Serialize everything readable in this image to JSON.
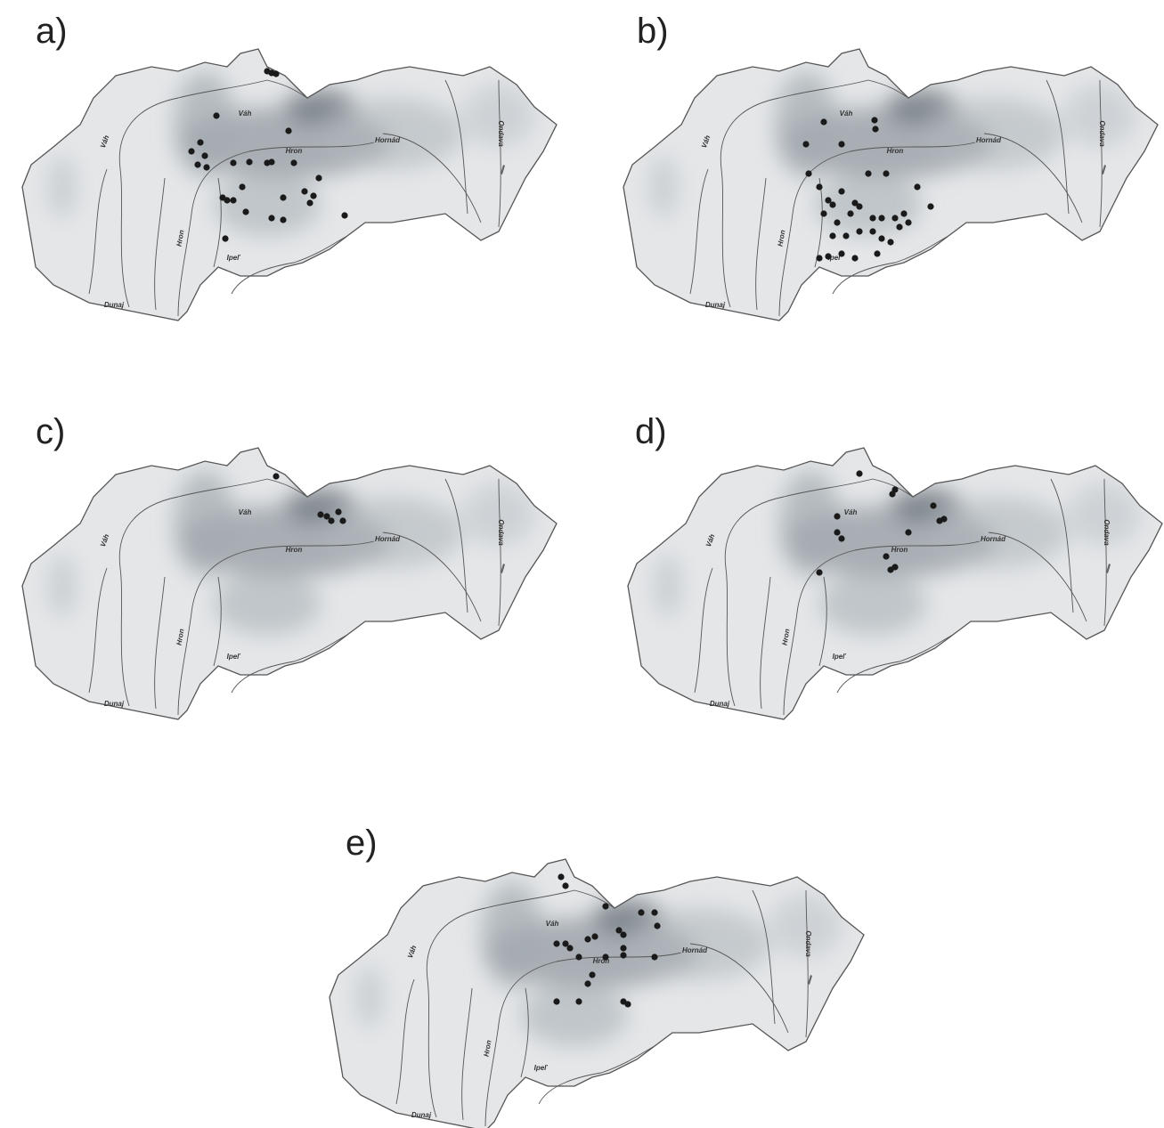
{
  "panels": [
    {
      "label": "a)"
    },
    {
      "label": "b)"
    },
    {
      "label": "c)"
    },
    {
      "label": "d)"
    },
    {
      "label": "e)"
    }
  ],
  "river_labels": [
    "Váh",
    "Váh",
    "Hron",
    "Hron",
    "Hornád",
    "Ondava",
    "Ipeľ",
    "Dunaj"
  ]
}
